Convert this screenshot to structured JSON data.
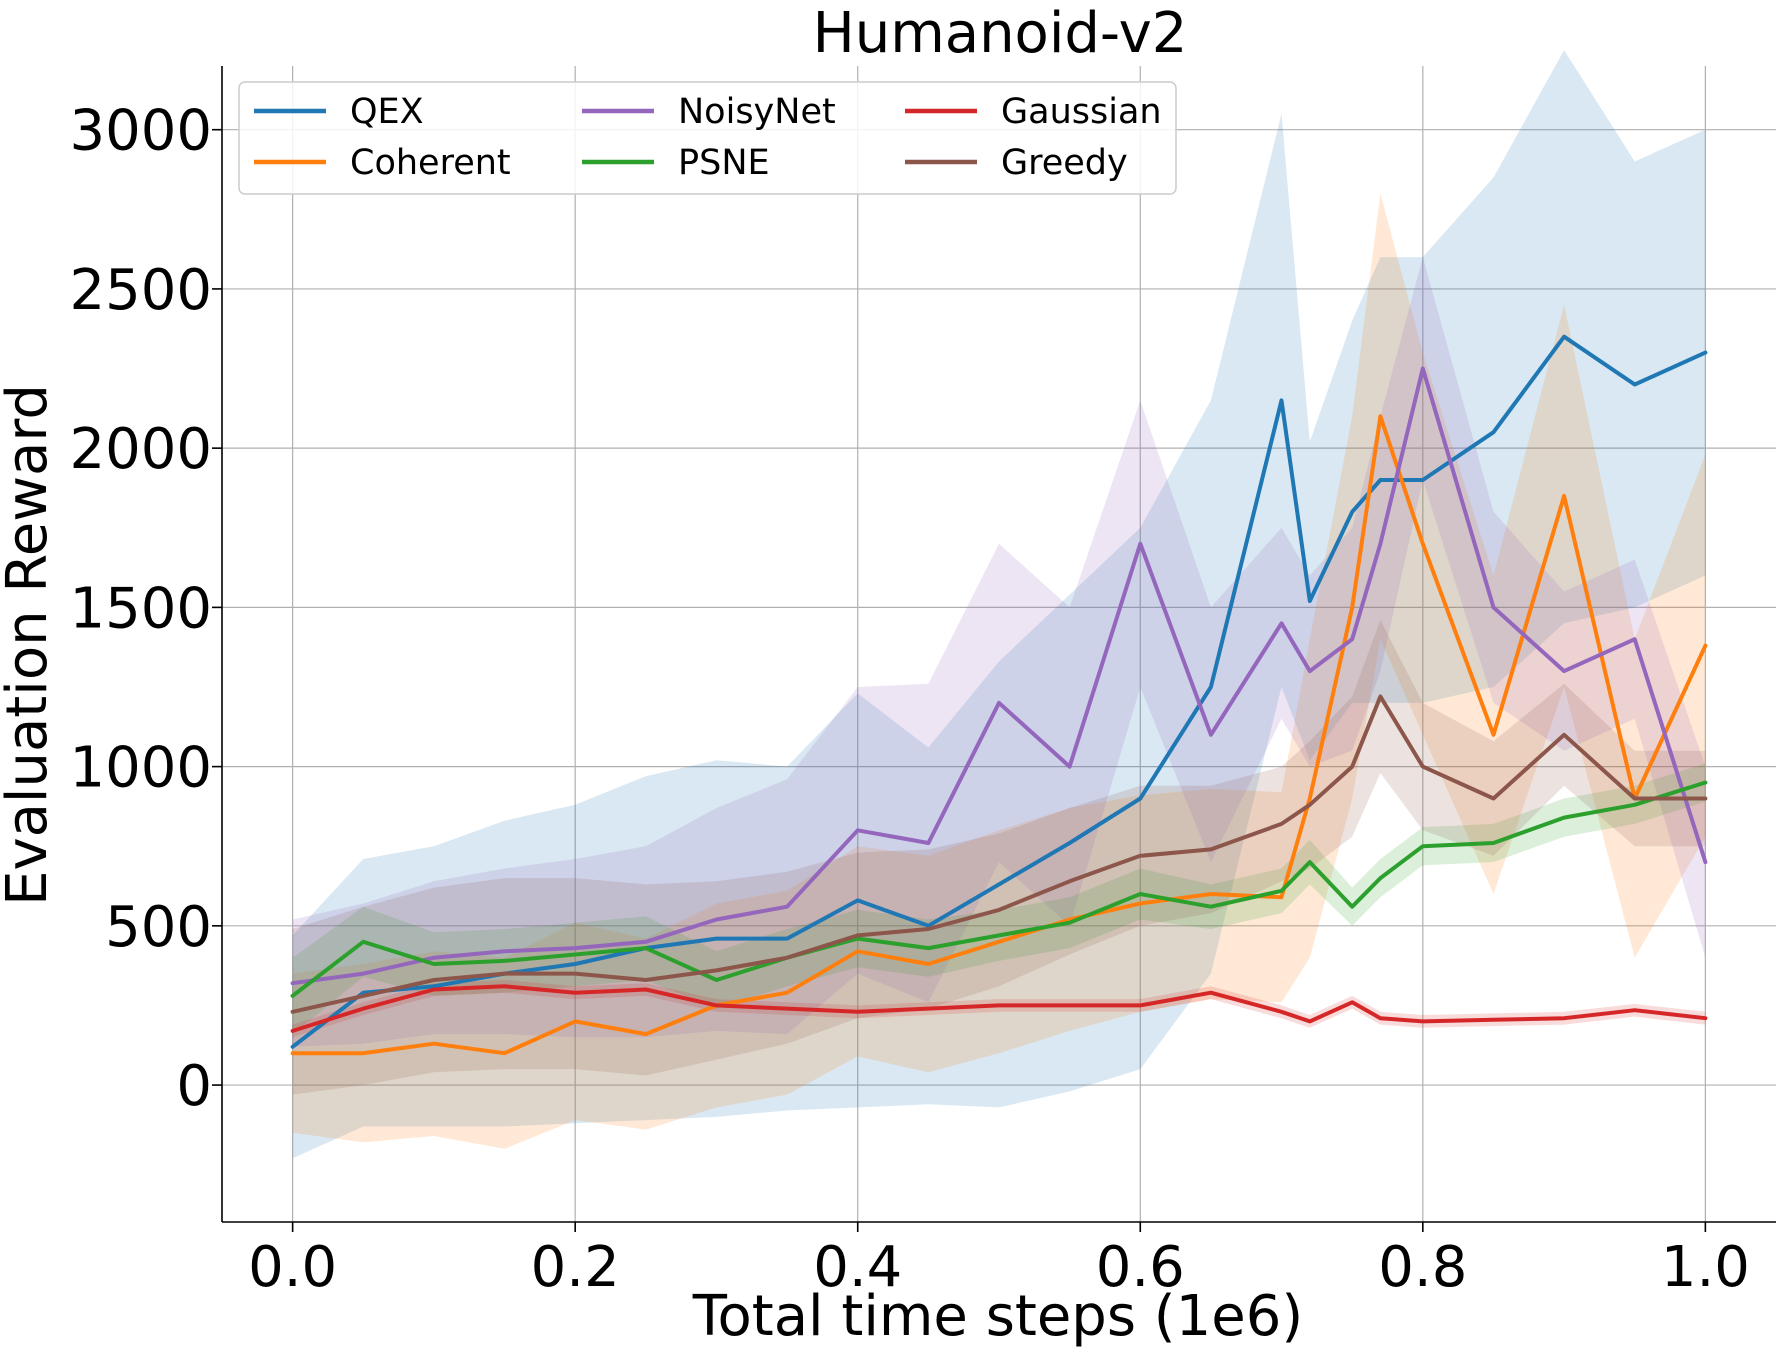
{
  "chart_data": {
    "type": "line",
    "title": "Humanoid-v2",
    "xlabel": "Total time steps (1e6)",
    "ylabel": "Evaluation Reward",
    "xlim": [
      -0.05,
      1.05
    ],
    "ylim": [
      -430,
      3200
    ],
    "x_ticks": [
      "0.0",
      "0.2",
      "0.4",
      "0.6",
      "0.8",
      "1.0"
    ],
    "x_tick_values": [
      0.0,
      0.2,
      0.4,
      0.6,
      0.8,
      1.0
    ],
    "y_ticks": [
      "0",
      "500",
      "1000",
      "1500",
      "2000",
      "2500",
      "3000"
    ],
    "y_tick_values": [
      0,
      500,
      1000,
      1500,
      2000,
      2500,
      3000
    ],
    "grid": true,
    "legend_placement": "upper-left",
    "legend_columns": 3,
    "x": [
      0.0,
      0.05,
      0.1,
      0.15,
      0.2,
      0.25,
      0.3,
      0.35,
      0.4,
      0.45,
      0.5,
      0.55,
      0.6,
      0.65,
      0.7,
      0.72,
      0.75,
      0.77,
      0.8,
      0.85,
      0.9,
      0.95,
      1.0
    ],
    "series": [
      {
        "name": "QEX",
        "color": "#1f77b4",
        "values": [
          120,
          290,
          310,
          350,
          380,
          430,
          460,
          460,
          580,
          500,
          630,
          760,
          900,
          1250,
          2150,
          1520,
          1800,
          1900,
          1900,
          2050,
          2350,
          2200,
          2300
        ],
        "band": [
          350,
          420,
          440,
          480,
          500,
          540,
          560,
          540,
          650,
          560,
          700,
          780,
          850,
          900,
          900,
          500,
          600,
          700,
          700,
          800,
          900,
          700,
          700
        ]
      },
      {
        "name": "Coherent",
        "color": "#ff7f0e",
        "values": [
          100,
          100,
          130,
          100,
          200,
          160,
          250,
          290,
          420,
          380,
          450,
          520,
          570,
          600,
          590,
          900,
          1500,
          2100,
          1700,
          1100,
          1850,
          900,
          1380
        ],
        "band": [
          250,
          280,
          290,
          300,
          310,
          300,
          320,
          320,
          330,
          340,
          350,
          350,
          340,
          330,
          330,
          500,
          600,
          700,
          600,
          500,
          600,
          500,
          600
        ]
      },
      {
        "name": "NoisyNet",
        "color": "#9467bd",
        "values": [
          320,
          350,
          400,
          420,
          430,
          450,
          520,
          560,
          800,
          760,
          1200,
          1000,
          1700,
          1100,
          1450,
          1300,
          1400,
          1700,
          2250,
          1500,
          1300,
          1400,
          700
        ],
        "band": [
          200,
          220,
          240,
          260,
          280,
          300,
          350,
          400,
          450,
          500,
          500,
          500,
          450,
          400,
          300,
          300,
          350,
          400,
          350,
          300,
          250,
          250,
          300
        ]
      },
      {
        "name": "PSNE",
        "color": "#2ca02c",
        "values": [
          280,
          450,
          380,
          390,
          410,
          430,
          330,
          400,
          460,
          430,
          470,
          510,
          600,
          560,
          610,
          700,
          560,
          650,
          750,
          760,
          840,
          880,
          950
        ],
        "band": [
          120,
          110,
          100,
          100,
          100,
          100,
          90,
          90,
          90,
          90,
          80,
          80,
          80,
          70,
          70,
          70,
          60,
          60,
          60,
          60,
          60,
          60,
          60
        ]
      },
      {
        "name": "Gaussian",
        "color": "#d62728",
        "values": [
          170,
          240,
          300,
          310,
          290,
          300,
          250,
          240,
          230,
          240,
          250,
          250,
          250,
          290,
          230,
          200,
          260,
          210,
          200,
          205,
          210,
          235,
          210
        ],
        "band": [
          20,
          20,
          20,
          20,
          20,
          20,
          20,
          20,
          20,
          20,
          20,
          20,
          20,
          20,
          20,
          20,
          20,
          20,
          20,
          20,
          20,
          20,
          20
        ]
      },
      {
        "name": "Greedy",
        "color": "#8c564b",
        "values": [
          230,
          280,
          330,
          350,
          350,
          330,
          360,
          400,
          470,
          490,
          550,
          640,
          720,
          740,
          820,
          880,
          1000,
          1220,
          1000,
          900,
          1100,
          900,
          900
        ],
        "band": [
          260,
          280,
          290,
          300,
          300,
          300,
          280,
          270,
          260,
          250,
          240,
          230,
          220,
          200,
          180,
          200,
          220,
          240,
          200,
          180,
          160,
          150,
          150
        ]
      }
    ]
  }
}
